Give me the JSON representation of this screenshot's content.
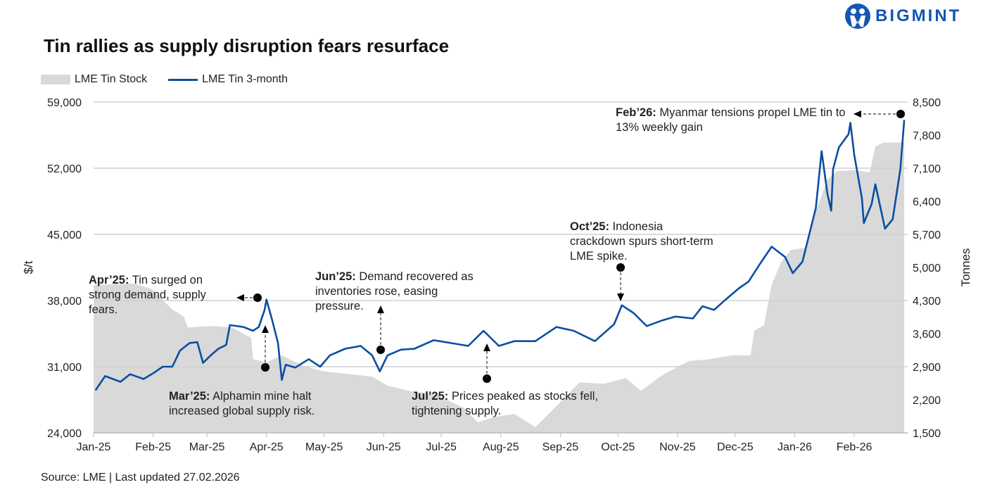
{
  "brand": {
    "logo_text": "BIGMINT",
    "color": "#1456b5"
  },
  "footer": {
    "source": "Source: LME | Last updated 27.02.2026"
  },
  "annotations": [
    {
      "bold": "Apr’25:",
      "text": " Tin surged on strong demand, supply fears."
    },
    {
      "bold": "Mar’25:",
      "text": " Alphamin mine halt increased global supply risk."
    },
    {
      "bold": "Jun’25:",
      "text": " Demand recovered as inventories rose, easing pressure."
    },
    {
      "bold": "Jul’25:",
      "text": " Prices peaked as stocks fell, tightening supply."
    },
    {
      "bold": "Oct’25:",
      "text": " Indonesia crackdown spurs short-term LME spike."
    },
    {
      "bold": "Feb’26:",
      "text": " Myanmar tensions propel LME tin to 13% weekly gain"
    }
  ],
  "chart_data": {
    "type": "line",
    "title": "Tin rallies as supply disruption fears resurface",
    "ylabel": "$/t",
    "y2label": "Tonnes",
    "ylim": [
      24000,
      59000
    ],
    "y2lim": [
      1500,
      8500
    ],
    "yticks": [
      "24,000",
      "31,000",
      "38,000",
      "45,000",
      "52,000",
      "59,000"
    ],
    "y2ticks": [
      "1,500",
      "2,200",
      "2,900",
      "3,600",
      "4,300",
      "5,000",
      "5,700",
      "6,400",
      "7,100",
      "7,800",
      "8,500"
    ],
    "xticks": [
      {
        "label": "Jan-25",
        "date": "2025-01-01"
      },
      {
        "label": "Feb-25",
        "date": "2025-02-01"
      },
      {
        "label": "Mar-25",
        "date": "2025-03-01"
      },
      {
        "label": "Apr-25",
        "date": "2025-04-01"
      },
      {
        "label": "May-25",
        "date": "2025-05-01"
      },
      {
        "label": "Jun-25",
        "date": "2025-06-01"
      },
      {
        "label": "Jul-25",
        "date": "2025-07-01"
      },
      {
        "label": "Aug-25",
        "date": "2025-08-01"
      },
      {
        "label": "Sep-25",
        "date": "2025-09-01"
      },
      {
        "label": "Oct-25",
        "date": "2025-10-01"
      },
      {
        "label": "Nov-25",
        "date": "2025-11-01"
      },
      {
        "label": "Dec-25",
        "date": "2025-12-01"
      },
      {
        "label": "Jan-26",
        "date": "2026-01-01"
      },
      {
        "label": "Feb-26",
        "date": "2026-02-01"
      }
    ],
    "grid": true,
    "legend_position": "top-left",
    "series": [
      {
        "name": "LME Tin Stock",
        "type": "area",
        "axis": "right",
        "color": "#d9d9d9",
        "points": [
          [
            "2025-01-01",
            4630
          ],
          [
            "2025-01-22",
            4660
          ],
          [
            "2025-01-31",
            4550
          ],
          [
            "2025-02-11",
            4110
          ],
          [
            "2025-02-17",
            3960
          ],
          [
            "2025-02-19",
            3730
          ],
          [
            "2025-03-03",
            3760
          ],
          [
            "2025-03-14",
            3730
          ],
          [
            "2025-03-24",
            3510
          ],
          [
            "2025-03-25",
            3060
          ],
          [
            "2025-04-01",
            2990
          ],
          [
            "2025-04-09",
            3140
          ],
          [
            "2025-04-20",
            2920
          ],
          [
            "2025-05-01",
            2800
          ],
          [
            "2025-05-15",
            2740
          ],
          [
            "2025-05-26",
            2690
          ],
          [
            "2025-06-03",
            2500
          ],
          [
            "2025-06-14",
            2390
          ],
          [
            "2025-06-28",
            2320
          ],
          [
            "2025-07-13",
            2020
          ],
          [
            "2025-07-20",
            1720
          ],
          [
            "2025-07-28",
            1830
          ],
          [
            "2025-08-08",
            1900
          ],
          [
            "2025-08-19",
            1620
          ],
          [
            "2025-08-30",
            2070
          ],
          [
            "2025-09-11",
            2570
          ],
          [
            "2025-09-24",
            2540
          ],
          [
            "2025-10-05",
            2660
          ],
          [
            "2025-10-13",
            2390
          ],
          [
            "2025-10-24",
            2720
          ],
          [
            "2025-11-07",
            3020
          ],
          [
            "2025-11-18",
            3060
          ],
          [
            "2025-11-29",
            3140
          ],
          [
            "2025-12-09",
            3140
          ],
          [
            "2025-12-11",
            3660
          ],
          [
            "2025-12-16",
            3780
          ],
          [
            "2025-12-20",
            4630
          ],
          [
            "2025-12-25",
            5120
          ],
          [
            "2025-12-30",
            5370
          ],
          [
            "2026-01-07",
            5420
          ],
          [
            "2026-01-12",
            6190
          ],
          [
            "2026-01-18",
            6860
          ],
          [
            "2026-01-23",
            7040
          ],
          [
            "2026-02-01",
            7060
          ],
          [
            "2026-02-09",
            7010
          ],
          [
            "2026-02-12",
            7560
          ],
          [
            "2026-02-16",
            7640
          ],
          [
            "2026-02-27",
            7650
          ]
        ]
      },
      {
        "name": "LME Tin 3-month",
        "type": "line",
        "axis": "left",
        "color": "#0a4ea2",
        "points": [
          [
            "2025-01-02",
            28500
          ],
          [
            "2025-01-07",
            30000
          ],
          [
            "2025-01-15",
            29400
          ],
          [
            "2025-01-20",
            30200
          ],
          [
            "2025-01-27",
            29700
          ],
          [
            "2025-02-01",
            30300
          ],
          [
            "2025-02-06",
            31000
          ],
          [
            "2025-02-11",
            31000
          ],
          [
            "2025-02-15",
            32700
          ],
          [
            "2025-02-20",
            33500
          ],
          [
            "2025-02-24",
            33600
          ],
          [
            "2025-02-27",
            31400
          ],
          [
            "2025-03-03",
            32200
          ],
          [
            "2025-03-07",
            32900
          ],
          [
            "2025-03-11",
            33300
          ],
          [
            "2025-03-13",
            35400
          ],
          [
            "2025-03-20",
            35200
          ],
          [
            "2025-03-25",
            34800
          ],
          [
            "2025-03-28",
            35200
          ],
          [
            "2025-03-31",
            37000
          ],
          [
            "2025-04-01",
            38100
          ],
          [
            "2025-04-04",
            35900
          ],
          [
            "2025-04-07",
            33500
          ],
          [
            "2025-04-09",
            29600
          ],
          [
            "2025-04-11",
            31200
          ],
          [
            "2025-04-16",
            30900
          ],
          [
            "2025-04-23",
            31800
          ],
          [
            "2025-04-29",
            31000
          ],
          [
            "2025-05-04",
            32200
          ],
          [
            "2025-05-12",
            32900
          ],
          [
            "2025-05-20",
            33200
          ],
          [
            "2025-05-26",
            32200
          ],
          [
            "2025-05-30",
            30500
          ],
          [
            "2025-06-03",
            32200
          ],
          [
            "2025-06-10",
            32800
          ],
          [
            "2025-06-17",
            32900
          ],
          [
            "2025-06-27",
            33800
          ],
          [
            "2025-07-06",
            33500
          ],
          [
            "2025-07-15",
            33200
          ],
          [
            "2025-07-23",
            34800
          ],
          [
            "2025-07-31",
            33200
          ],
          [
            "2025-08-08",
            33700
          ],
          [
            "2025-08-19",
            33700
          ],
          [
            "2025-08-30",
            35200
          ],
          [
            "2025-09-08",
            34800
          ],
          [
            "2025-09-19",
            33700
          ],
          [
            "2025-09-29",
            35500
          ],
          [
            "2025-10-03",
            37500
          ],
          [
            "2025-10-09",
            36700
          ],
          [
            "2025-10-16",
            35300
          ],
          [
            "2025-10-24",
            35900
          ],
          [
            "2025-10-31",
            36300
          ],
          [
            "2025-11-09",
            36100
          ],
          [
            "2025-11-14",
            37400
          ],
          [
            "2025-11-20",
            37000
          ],
          [
            "2025-11-26",
            38100
          ],
          [
            "2025-12-03",
            39300
          ],
          [
            "2025-12-08",
            40000
          ],
          [
            "2025-12-14",
            41900
          ],
          [
            "2025-12-20",
            43700
          ],
          [
            "2025-12-27",
            42600
          ],
          [
            "2025-12-31",
            40900
          ],
          [
            "2026-01-05",
            42100
          ],
          [
            "2026-01-12",
            47800
          ],
          [
            "2026-01-15",
            53800
          ],
          [
            "2026-01-18",
            49300
          ],
          [
            "2026-01-20",
            47500
          ],
          [
            "2026-01-21",
            51900
          ],
          [
            "2026-01-24",
            54200
          ],
          [
            "2026-01-29",
            55600
          ],
          [
            "2026-01-30",
            56800
          ],
          [
            "2026-02-01",
            53400
          ],
          [
            "2026-02-05",
            48800
          ],
          [
            "2026-02-06",
            46200
          ],
          [
            "2026-02-10",
            48200
          ],
          [
            "2026-02-12",
            50300
          ],
          [
            "2026-02-17",
            45600
          ],
          [
            "2026-02-21",
            46600
          ],
          [
            "2026-02-25",
            51900
          ],
          [
            "2026-02-27",
            57100
          ]
        ]
      }
    ]
  }
}
